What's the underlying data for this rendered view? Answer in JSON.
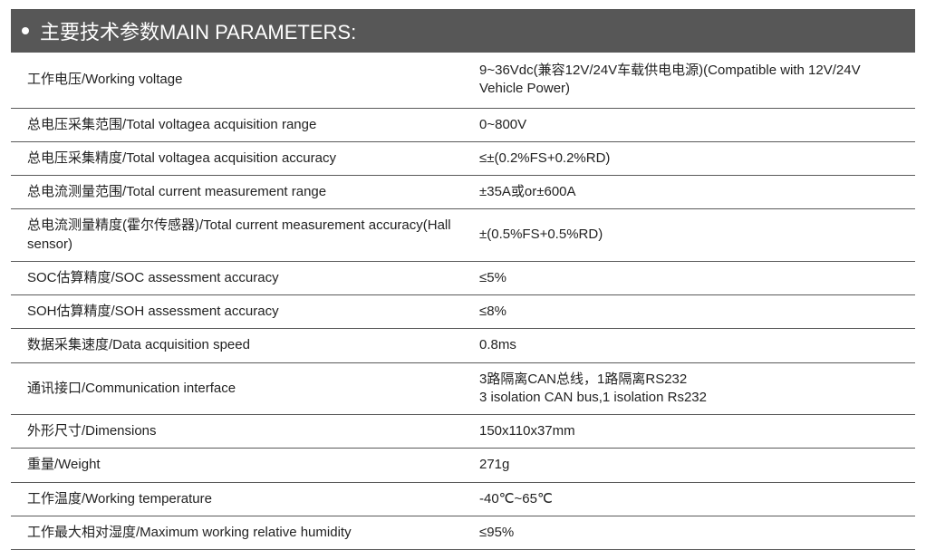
{
  "header": {
    "title": "主要技术参数MAIN PARAMETERS:"
  },
  "table": {
    "type": "table",
    "colors": {
      "header_bg": "#575757",
      "header_text": "#ffffff",
      "border": "#5a5a5a",
      "text": "#222222",
      "background": "#ffffff"
    },
    "font": {
      "header_size": 22,
      "body_size": 15,
      "family": "Arial, Microsoft YaHei"
    },
    "column_widths": [
      "50%",
      "50%"
    ],
    "rows": [
      {
        "label": "工作电压/Working voltage",
        "value": "9~36Vdc(兼容12V/24V车载供电电源)(Compatible with 12V/24V Vehicle Power)"
      },
      {
        "label": "总电压采集范围/Total voltagea acquisition range",
        "value": "0~800V"
      },
      {
        "label": "总电压采集精度/Total voltagea acquisition accuracy",
        "value": "≤±(0.2%FS+0.2%RD)"
      },
      {
        "label": "总电流测量范围/Total current measurement range",
        "value": "±35A或or±600A"
      },
      {
        "label": "总电流测量精度(霍尔传感器)/Total current measurement accuracy(Hall sensor)",
        "value": "±(0.5%FS+0.5%RD)"
      },
      {
        "label": "SOC估算精度/SOC assessment accuracy",
        "value": "≤5%"
      },
      {
        "label": "SOH估算精度/SOH assessment accuracy",
        "value": "≤8%"
      },
      {
        "label": "数据采集速度/Data acquisition speed",
        "value": "0.8ms"
      },
      {
        "label": "通讯接口/Communication interface",
        "value": "3路隔离CAN总线，1路隔离RS232\n3 isolation CAN bus,1 isolation Rs232"
      },
      {
        "label": "外形尺寸/Dimensions",
        "value": "150x110x37mm"
      },
      {
        "label": "重量/Weight",
        "value": "271g"
      },
      {
        "label": "工作温度/Working temperature",
        "value": "-40℃~65℃"
      },
      {
        "label": "工作最大相对湿度/Maximum working relative humidity",
        "value": "≤95%"
      }
    ]
  }
}
